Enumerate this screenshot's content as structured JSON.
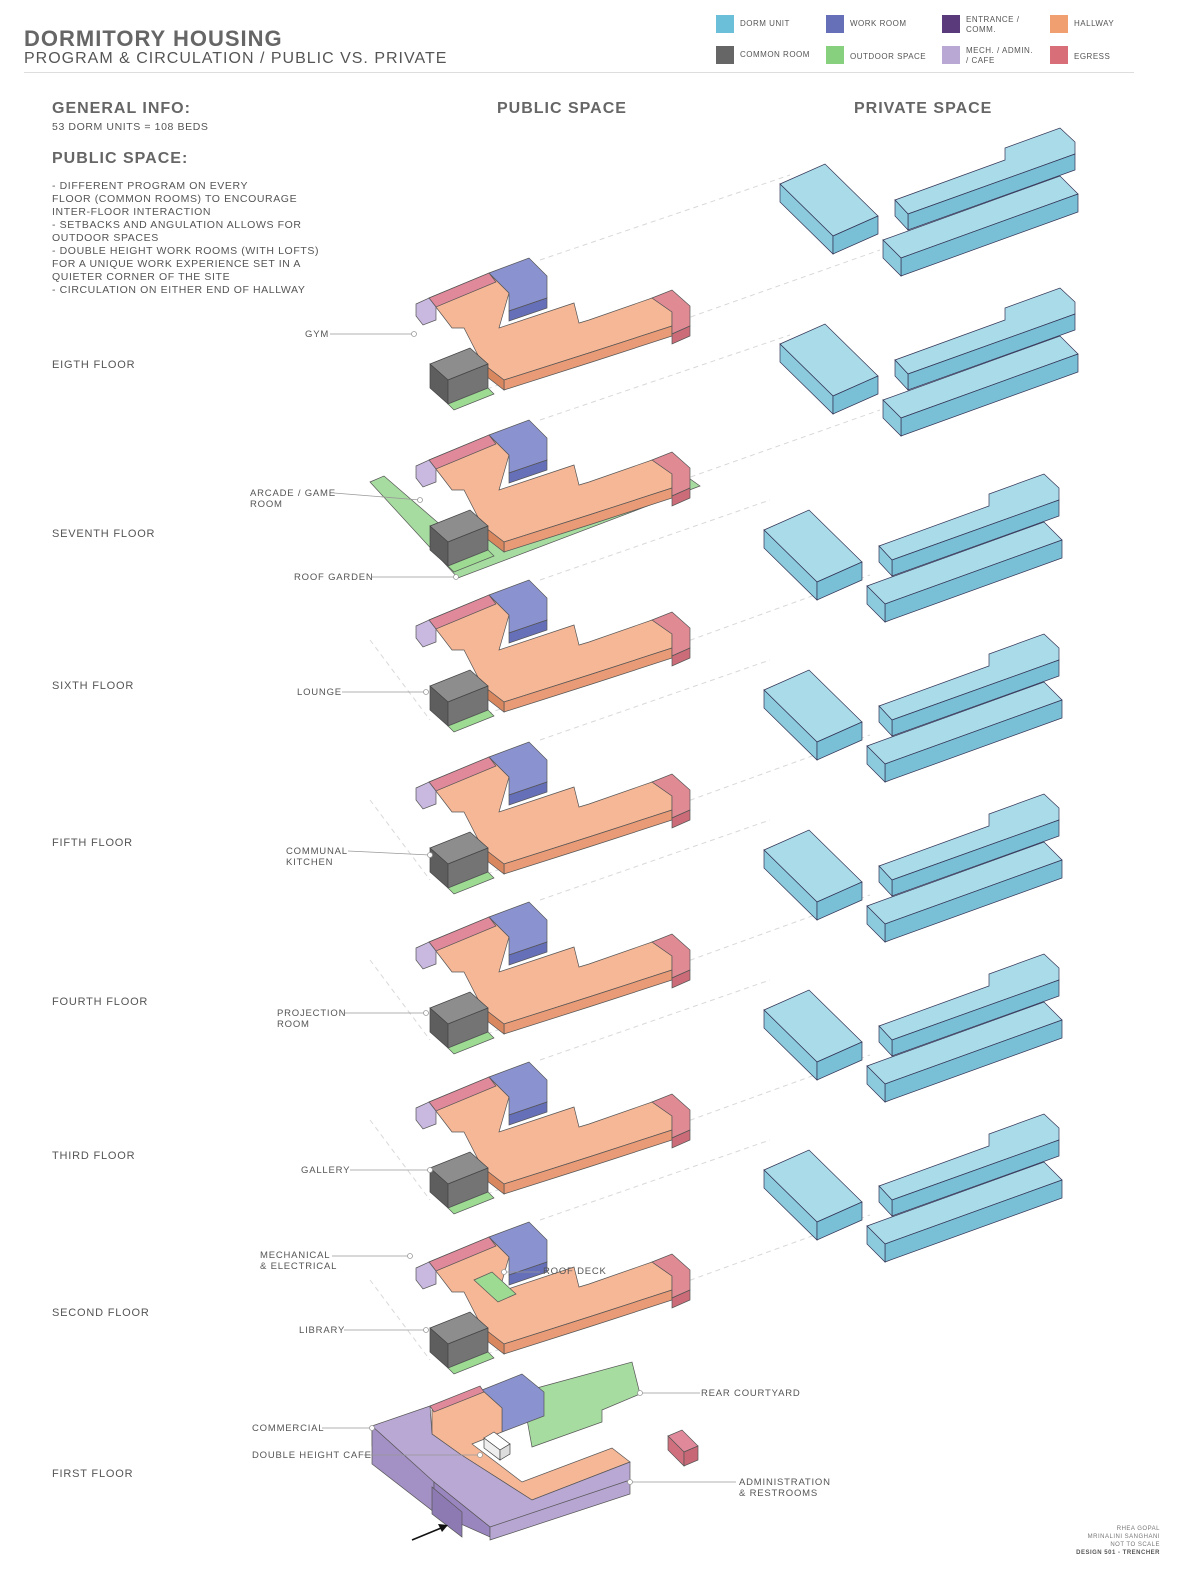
{
  "header": {
    "title": "DORMITORY HOUSING",
    "subtitle": "PROGRAM & CIRCULATION / PUBLIC VS. PRIVATE"
  },
  "legend": [
    {
      "label": "DORM UNIT",
      "color": "#6cbfd8"
    },
    {
      "label": "WORK ROOM",
      "color": "#6670b8"
    },
    {
      "label": "ENTRANCE / COMM.",
      "color": "#5a3a7a"
    },
    {
      "label": "HALLWAY",
      "color": "#f0a070"
    },
    {
      "label": "COMMON ROOM",
      "color": "#666666"
    },
    {
      "label": "OUTDOOR SPACE",
      "color": "#86d07e"
    },
    {
      "label": "MECH. / ADMIN. / CAFE",
      "color": "#b9a8d4"
    },
    {
      "label": "EGRESS",
      "color": "#d86f78"
    }
  ],
  "columns": {
    "public": "PUBLIC SPACE",
    "private": "PRIVATE SPACE"
  },
  "general": {
    "heading": "GENERAL INFO:",
    "units": "53 DORM UNITS = 108 BEDS",
    "public_heading": "PUBLIC SPACE:",
    "bullets": [
      "- DIFFERENT PROGRAM ON EVERY",
      "FLOOR (COMMON ROOMS) TO ENCOURAGE",
      "INTER-FLOOR INTERACTION",
      "- SETBACKS AND ANGULATION ALLOWS FOR",
      "OUTDOOR SPACES",
      "- DOUBLE HEIGHT WORK ROOMS (WITH LOFTS)",
      "FOR A UNIQUE WORK EXPERIENCE SET IN A",
      "QUIETER CORNER OF THE SITE",
      "- CIRCULATION ON EITHER END OF HALLWAY"
    ]
  },
  "floors": [
    {
      "name": "EIGTH FLOOR",
      "labels": [
        "GYM"
      ]
    },
    {
      "name": "SEVENTH FLOOR",
      "labels": [
        "ARCADE / GAME\nROOM",
        "ROOF GARDEN"
      ]
    },
    {
      "name": "SIXTH FLOOR",
      "labels": [
        "LOUNGE"
      ]
    },
    {
      "name": "FIFTH FLOOR",
      "labels": [
        "COMMUNAL\nKITCHEN"
      ]
    },
    {
      "name": "FOURTH FLOOR",
      "labels": [
        "PROJECTION\nROOM"
      ]
    },
    {
      "name": "THIRD FLOOR",
      "labels": [
        "GALLERY"
      ]
    },
    {
      "name": "SECOND FLOOR",
      "labels": [
        "MECHANICAL\n& ELECTRICAL",
        "ROOF DECK",
        "LIBRARY"
      ]
    },
    {
      "name": "FIRST FLOOR",
      "labels": [
        "REAR COURTYARD",
        "COMMERCIAL",
        "DOUBLE HEIGHT CAFE",
        "ADMINISTRATION\n& RESTROOMS"
      ]
    }
  ],
  "credits": [
    "RHEA GOPAL",
    "MRINALINI SANGHANI",
    "NOT TO SCALE",
    "DESIGN 501 - TRENCHER"
  ]
}
